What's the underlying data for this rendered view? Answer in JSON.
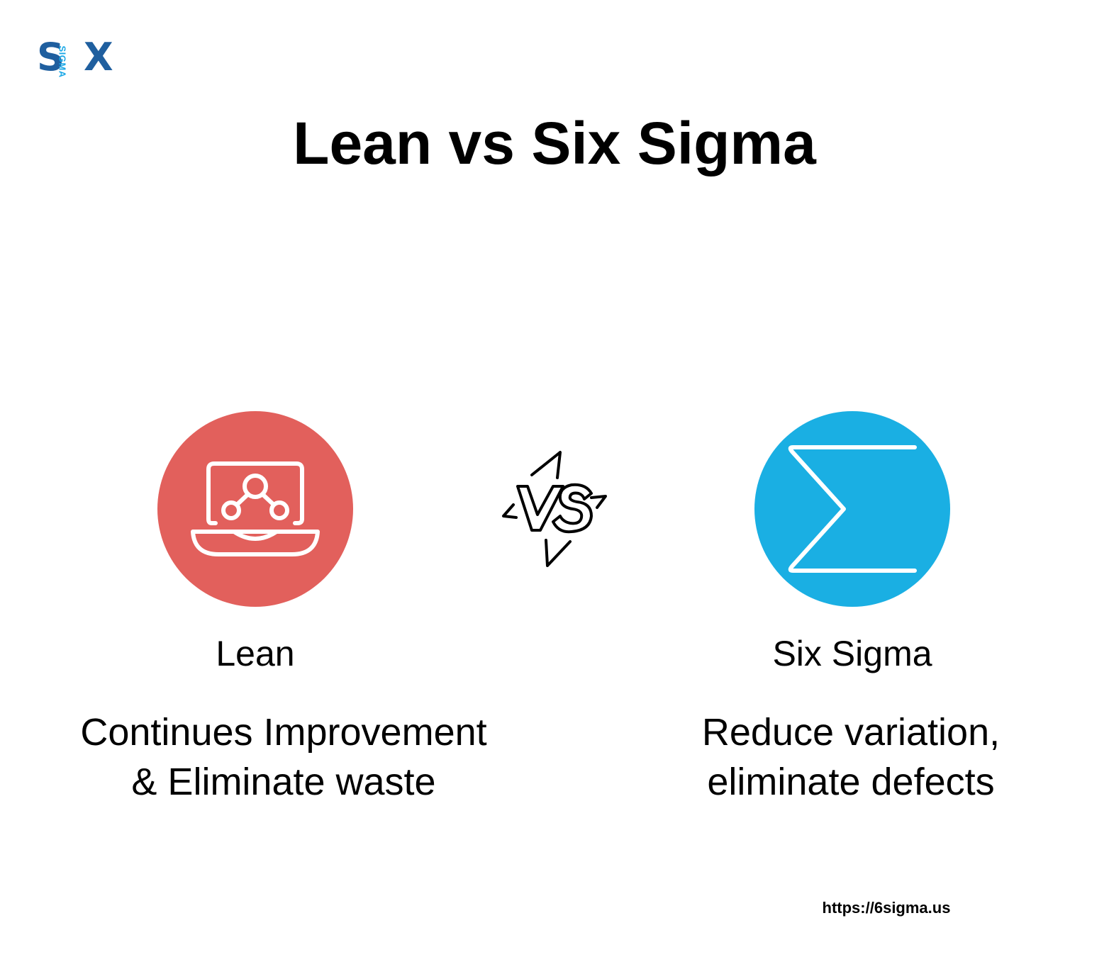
{
  "logo": {
    "letter_left": "S",
    "letter_right": "X",
    "vertical_text": "SIGMA",
    "colors": {
      "dark": "#1f5f9f",
      "light": "#1aa7e6"
    }
  },
  "title": "Lean vs Six Sigma",
  "vs_icon": {
    "icon": "vs-lightning-icon",
    "text": "VS"
  },
  "left": {
    "icon": "laptop-network-icon",
    "circle_color": "#e2605c",
    "label": "Lean",
    "description_lines": [
      "Continues Improvement",
      "& Eliminate waste"
    ]
  },
  "right": {
    "icon": "sigma-icon",
    "circle_color": "#1aafe3",
    "label": "Six Sigma",
    "description_lines": [
      "Reduce variation,",
      "eliminate defects"
    ]
  },
  "footer": {
    "url": "https://6sigma.us"
  }
}
